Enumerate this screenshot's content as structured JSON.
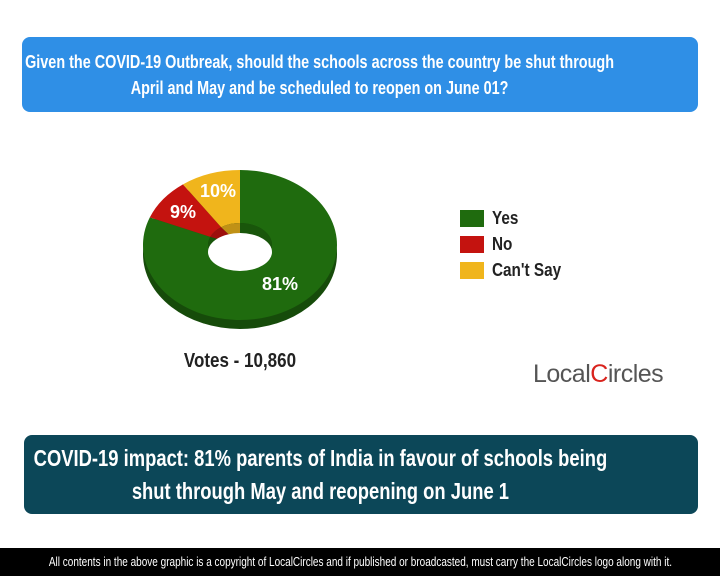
{
  "question": "Given the COVID-19 Outbreak, should the schools across the country be shut through April and May and be scheduled to reopen on June 01?",
  "chart_data": {
    "type": "pie",
    "variant": "3d-donut",
    "categories": [
      "Yes",
      "No",
      "Can't Say"
    ],
    "values": [
      81,
      9,
      10
    ],
    "labels": [
      "81%",
      "9%",
      "10%"
    ],
    "colors": [
      "#1f6b0e",
      "#c4130f",
      "#f0b51c"
    ],
    "legend": "right"
  },
  "votes": "Votes - 10,860",
  "logo": {
    "part1": "Local",
    "part2": "C",
    "part3": "ircles"
  },
  "headline": "COVID-19 impact: 81% parents of India in favour of schools being shut through May and reopening on June 1",
  "footer": "All contents in the above graphic is a copyright of LocalCircles and if published or broadcasted, must carry the LocalCircles logo along with it."
}
